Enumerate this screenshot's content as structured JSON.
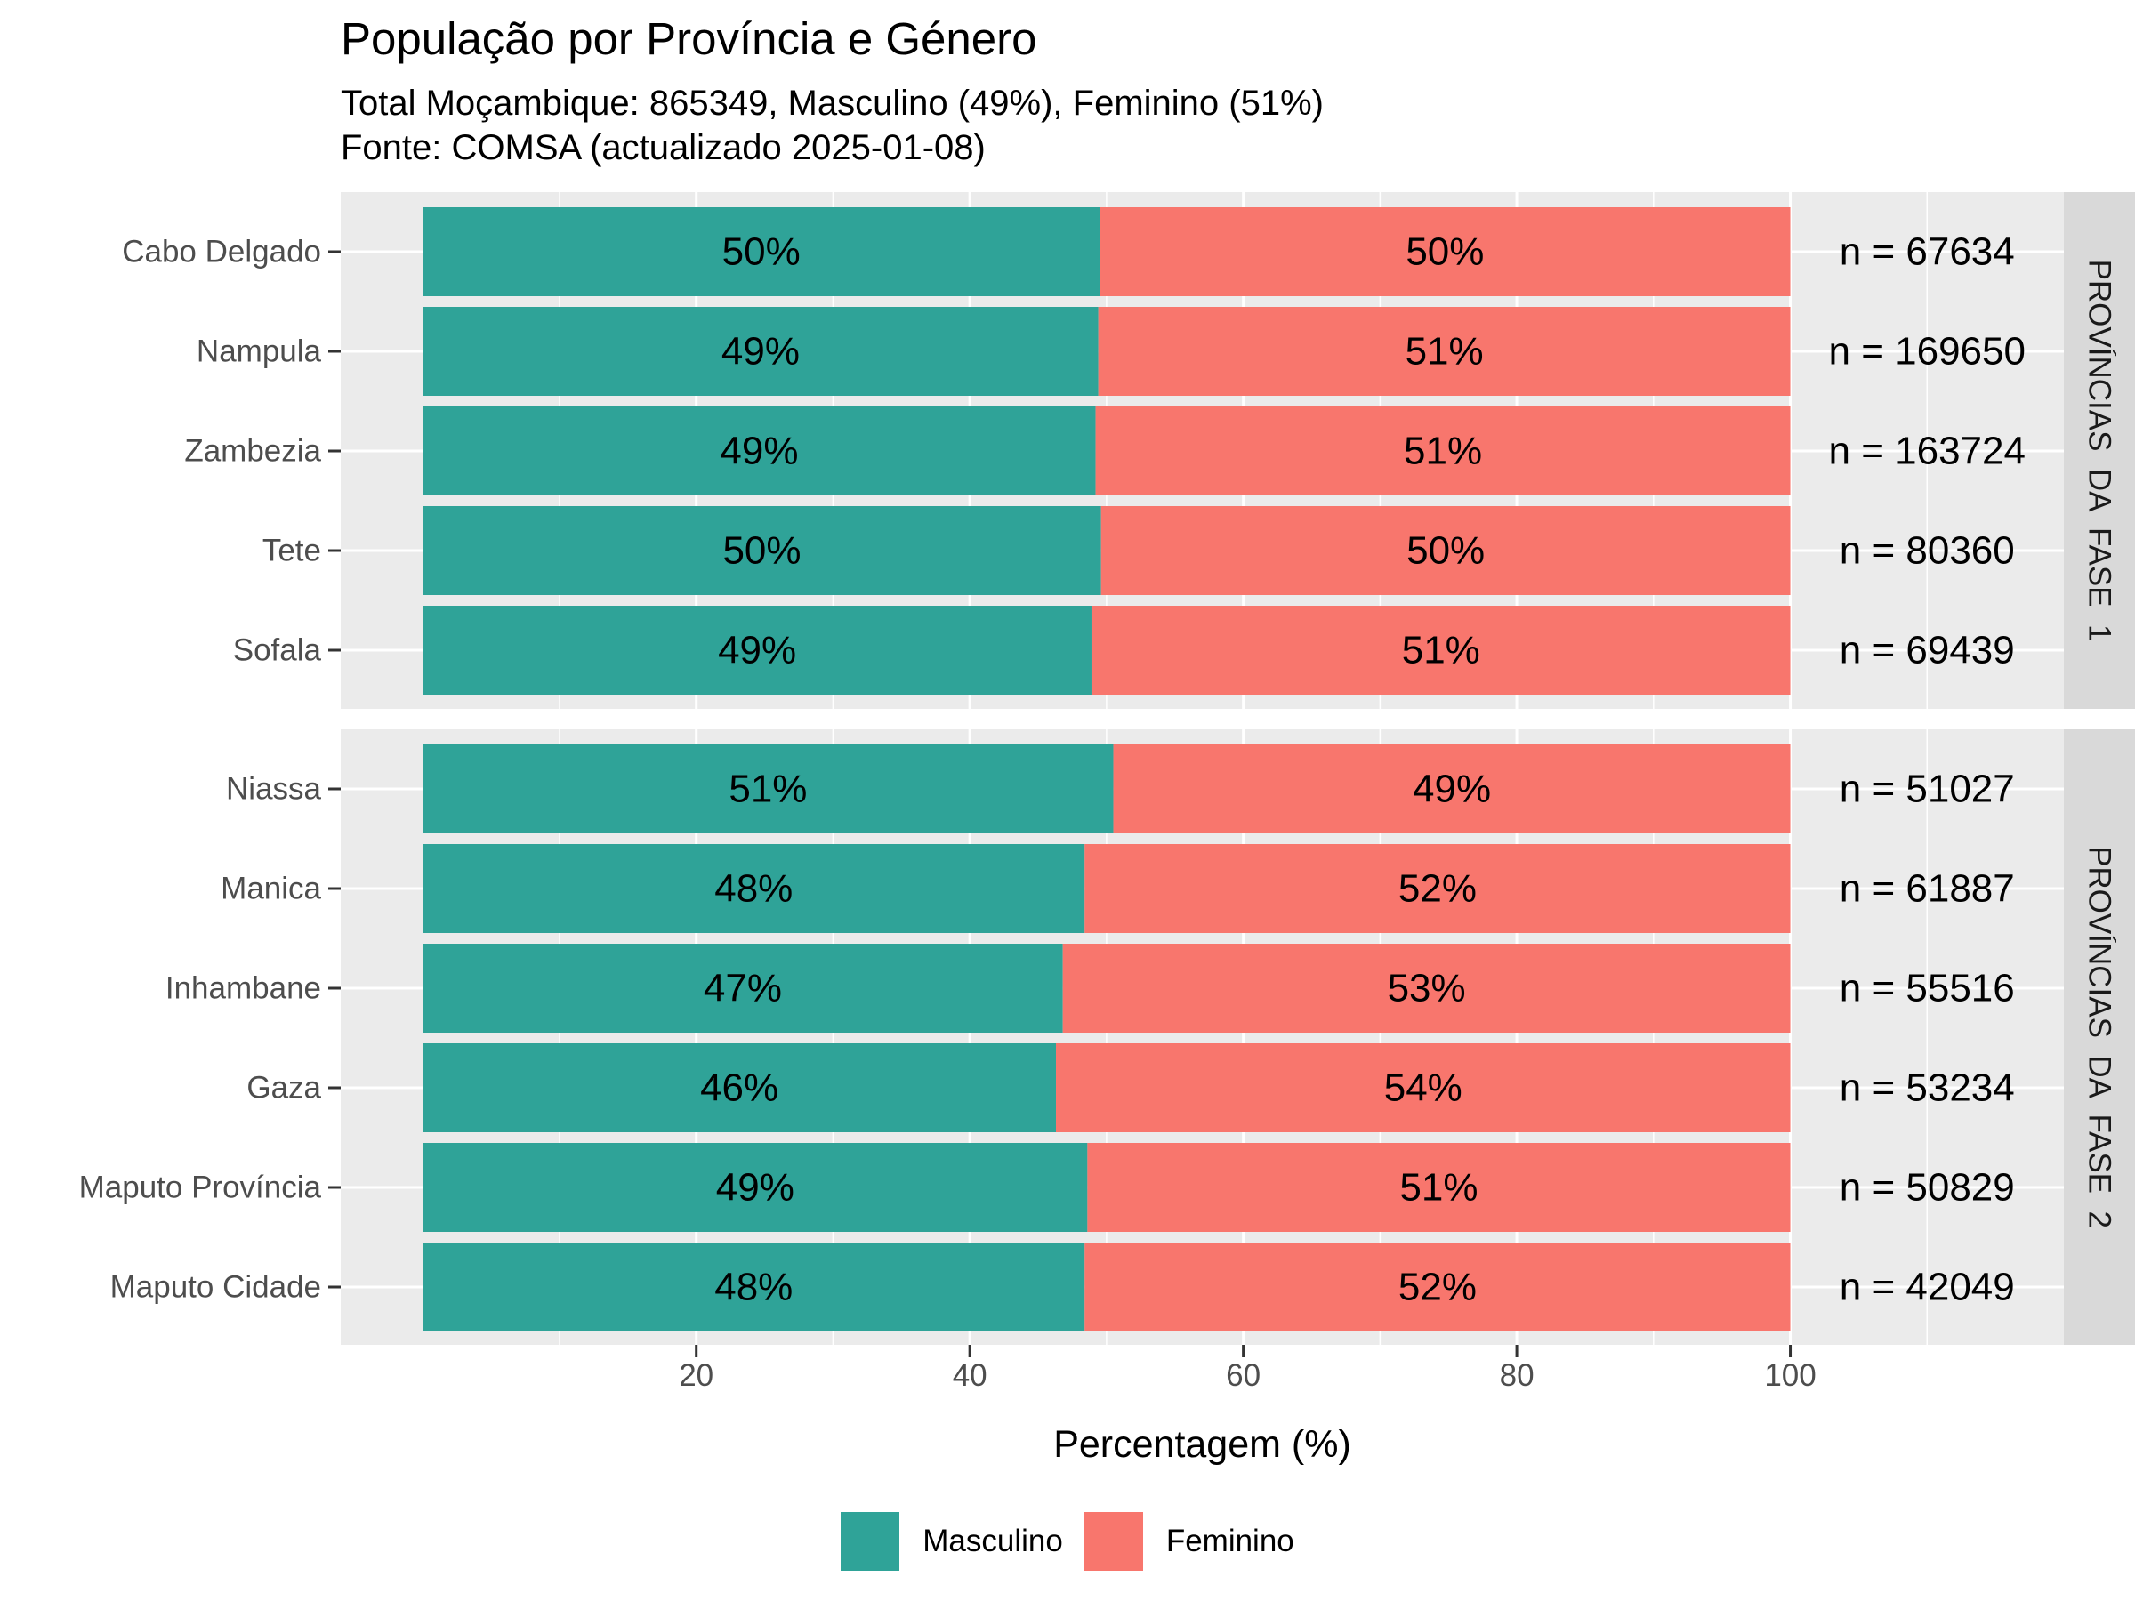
{
  "title": "População por Província e Género",
  "subtitle_lines": [
    "Total Moçambique: 865349, Masculino (49%), Feminino (51%)",
    "Fonte: COMSA (actualizado 2025-01-08)"
  ],
  "colors": {
    "masculino": "#2fa398",
    "feminino": "#f8766d",
    "panel_bg": "#ebebeb",
    "strip_bg": "#d9d9d9"
  },
  "chart_data": {
    "type": "bar",
    "orientation": "horizontal",
    "stacked": true,
    "xlabel": "Percentagem (%)",
    "ylabel": "",
    "xlim": [
      -6,
      120
    ],
    "x_ticks": [
      20,
      40,
      60,
      80,
      100
    ],
    "grid": true,
    "legend_position": "bottom",
    "series": [
      {
        "name": "Masculino",
        "color": "#2fa398"
      },
      {
        "name": "Feminino",
        "color": "#f8766d"
      }
    ],
    "panels": [
      {
        "strip": "PROVÍNCIAS  DA  FASE  1",
        "rows": [
          {
            "label": "Cabo Delgado",
            "masculino": 49.5,
            "feminino": 50.5,
            "masc_label": "50%",
            "fem_label": "50%",
            "n_label": "n = 67634"
          },
          {
            "label": "Nampula",
            "masculino": 49.4,
            "feminino": 50.6,
            "masc_label": "49%",
            "fem_label": "51%",
            "n_label": "n = 169650"
          },
          {
            "label": "Zambezia",
            "masculino": 49.2,
            "feminino": 50.8,
            "masc_label": "49%",
            "fem_label": "51%",
            "n_label": "n = 163724"
          },
          {
            "label": "Tete",
            "masculino": 49.6,
            "feminino": 50.4,
            "masc_label": "50%",
            "fem_label": "50%",
            "n_label": "n = 80360"
          },
          {
            "label": "Sofala",
            "masculino": 48.9,
            "feminino": 51.1,
            "masc_label": "49%",
            "fem_label": "51%",
            "n_label": "n = 69439"
          }
        ]
      },
      {
        "strip": "PROVÍNCIAS  DA  FASE  2",
        "rows": [
          {
            "label": "Niassa",
            "masculino": 50.5,
            "feminino": 49.5,
            "masc_label": "51%",
            "fem_label": "49%",
            "n_label": "n = 51027"
          },
          {
            "label": "Manica",
            "masculino": 48.4,
            "feminino": 51.6,
            "masc_label": "48%",
            "fem_label": "52%",
            "n_label": "n = 61887"
          },
          {
            "label": "Inhambane",
            "masculino": 46.8,
            "feminino": 53.2,
            "masc_label": "47%",
            "fem_label": "53%",
            "n_label": "n = 55516"
          },
          {
            "label": "Gaza",
            "masculino": 46.3,
            "feminino": 53.7,
            "masc_label": "46%",
            "fem_label": "54%",
            "n_label": "n = 53234"
          },
          {
            "label": "Maputo Província",
            "masculino": 48.6,
            "feminino": 51.4,
            "masc_label": "49%",
            "fem_label": "51%",
            "n_label": "n = 50829"
          },
          {
            "label": "Maputo Cidade",
            "masculino": 48.4,
            "feminino": 51.6,
            "masc_label": "48%",
            "fem_label": "52%",
            "n_label": "n = 42049"
          }
        ]
      }
    ]
  }
}
